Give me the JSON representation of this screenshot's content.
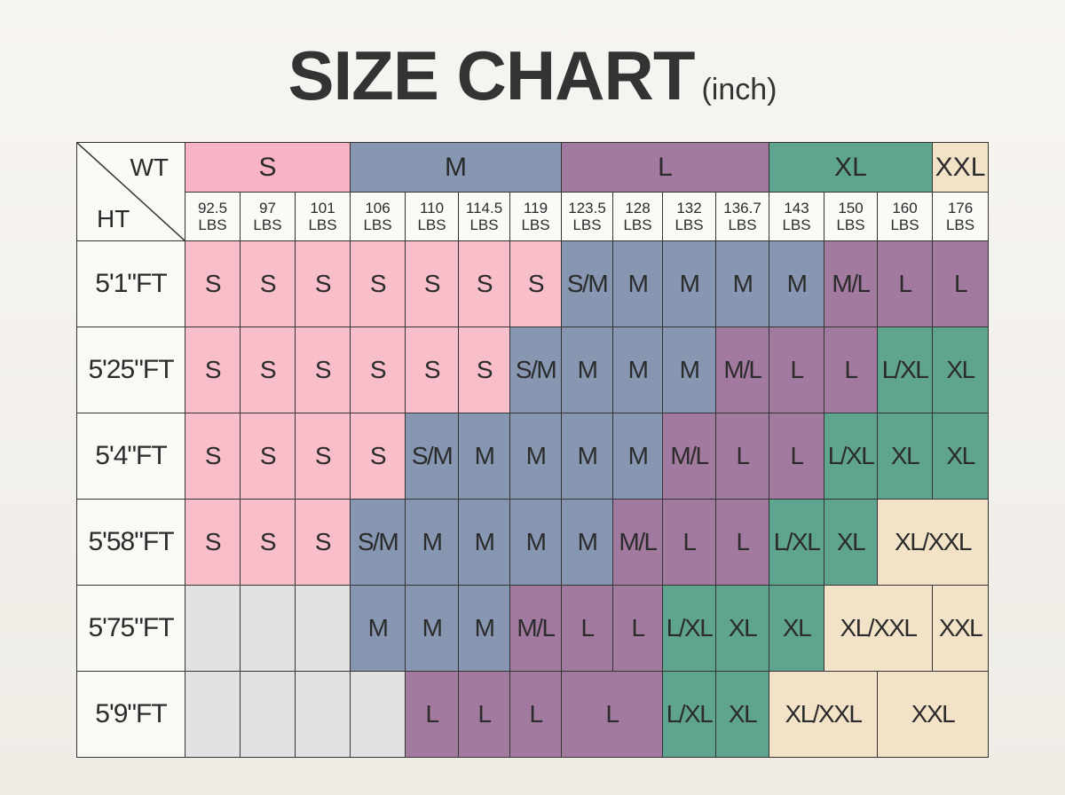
{
  "header": {
    "title": "SIZE CHART",
    "unit": "(inch)"
  },
  "table": {
    "corner": {
      "top": "WT",
      "bottom": "HT"
    },
    "groups": [
      {
        "text": "S",
        "span": 3,
        "color": "#f8b4c5"
      },
      {
        "text": "M",
        "span": 4,
        "color": "#8797b2"
      },
      {
        "text": "L",
        "span": 4,
        "color": "#a27a9f"
      },
      {
        "text": "XL",
        "span": 3,
        "color": "#5fa48e"
      },
      {
        "text": "XXL",
        "span": 1,
        "color": "#f2e2c8"
      }
    ],
    "weights": [
      "92.5\nLBS",
      "97\nLBS",
      "101\nLBS",
      "106\nLBS",
      "110\nLBS",
      "114.5\nLBS",
      "119\nLBS",
      "123.5\nLBS",
      "128\nLBS",
      "132\nLBS",
      "136.7\nLBS",
      "143\nLBS",
      "150\nLBS",
      "160\nLBS",
      "176\nLBS"
    ],
    "rows": [
      {
        "height": "5'1\"FT",
        "cells": [
          {
            "text": "S",
            "color": "#f8bfcb"
          },
          {
            "text": "S",
            "color": "#f8bfcb"
          },
          {
            "text": "S",
            "color": "#f8bfcb"
          },
          {
            "text": "S",
            "color": "#f8bfcb"
          },
          {
            "text": "S",
            "color": "#f8bfcb"
          },
          {
            "text": "S",
            "color": "#f8bfcb"
          },
          {
            "text": "S",
            "color": "#f8bfcb"
          },
          {
            "text": "S/M",
            "color": "#8797b2"
          },
          {
            "text": "M",
            "color": "#8797b2"
          },
          {
            "text": "M",
            "color": "#8797b2"
          },
          {
            "text": "M",
            "color": "#8797b2"
          },
          {
            "text": "M",
            "color": "#8797b2"
          },
          {
            "text": "M/L",
            "color": "#a27a9f"
          },
          {
            "text": "L",
            "color": "#a27a9f"
          },
          {
            "text": "L",
            "color": "#a27a9f"
          }
        ]
      },
      {
        "height": "5'25\"FT",
        "cells": [
          {
            "text": "S",
            "color": "#f8bfcb"
          },
          {
            "text": "S",
            "color": "#f8bfcb"
          },
          {
            "text": "S",
            "color": "#f8bfcb"
          },
          {
            "text": "S",
            "color": "#f8bfcb"
          },
          {
            "text": "S",
            "color": "#f8bfcb"
          },
          {
            "text": "S",
            "color": "#f8bfcb"
          },
          {
            "text": "S/M",
            "color": "#8797b2"
          },
          {
            "text": "M",
            "color": "#8797b2"
          },
          {
            "text": "M",
            "color": "#8797b2"
          },
          {
            "text": "M",
            "color": "#8797b2"
          },
          {
            "text": "M/L",
            "color": "#a27a9f"
          },
          {
            "text": "L",
            "color": "#a27a9f"
          },
          {
            "text": "L",
            "color": "#a27a9f"
          },
          {
            "text": "L/XL",
            "color": "#5fa48e"
          },
          {
            "text": "XL",
            "color": "#5fa48e"
          }
        ]
      },
      {
        "height": "5'4\"FT",
        "cells": [
          {
            "text": "S",
            "color": "#f8bfcb"
          },
          {
            "text": "S",
            "color": "#f8bfcb"
          },
          {
            "text": "S",
            "color": "#f8bfcb"
          },
          {
            "text": "S",
            "color": "#f8bfcb"
          },
          {
            "text": "S/M",
            "color": "#8797b2"
          },
          {
            "text": "M",
            "color": "#8797b2"
          },
          {
            "text": "M",
            "color": "#8797b2"
          },
          {
            "text": "M",
            "color": "#8797b2"
          },
          {
            "text": "M",
            "color": "#8797b2"
          },
          {
            "text": "M/L",
            "color": "#a27a9f"
          },
          {
            "text": "L",
            "color": "#a27a9f"
          },
          {
            "text": "L",
            "color": "#a27a9f"
          },
          {
            "text": "L/XL",
            "color": "#5fa48e"
          },
          {
            "text": "XL",
            "color": "#5fa48e"
          },
          {
            "text": "XL",
            "color": "#5fa48e"
          }
        ]
      },
      {
        "height": "5'58\"FT",
        "cells": [
          {
            "text": "S",
            "color": "#f8bfcb"
          },
          {
            "text": "S",
            "color": "#f8bfcb"
          },
          {
            "text": "S",
            "color": "#f8bfcb"
          },
          {
            "text": "S/M",
            "color": "#8797b2"
          },
          {
            "text": "M",
            "color": "#8797b2"
          },
          {
            "text": "M",
            "color": "#8797b2"
          },
          {
            "text": "M",
            "color": "#8797b2"
          },
          {
            "text": "M",
            "color": "#8797b2"
          },
          {
            "text": "M/L",
            "color": "#a27a9f"
          },
          {
            "text": "L",
            "color": "#a27a9f"
          },
          {
            "text": "L",
            "color": "#a27a9f"
          },
          {
            "text": "L/XL",
            "color": "#5fa48e"
          },
          {
            "text": "XL",
            "color": "#5fa48e"
          },
          {
            "text": "XL/XXL",
            "color": "#f2e2c8",
            "span": 2
          }
        ]
      },
      {
        "height": "5'75\"FT",
        "cells": [
          {
            "color": "#e1e1e1"
          },
          {
            "color": "#e1e1e1"
          },
          {
            "color": "#e1e1e1"
          },
          {
            "text": "M",
            "color": "#8797b2"
          },
          {
            "text": "M",
            "color": "#8797b2"
          },
          {
            "text": "M",
            "color": "#8797b2"
          },
          {
            "text": "M/L",
            "color": "#a27a9f"
          },
          {
            "text": "L",
            "color": "#a27a9f"
          },
          {
            "text": "L",
            "color": "#a27a9f"
          },
          {
            "text": "L/XL",
            "color": "#5fa48e"
          },
          {
            "text": "XL",
            "color": "#5fa48e"
          },
          {
            "text": "XL",
            "color": "#5fa48e"
          },
          {
            "text": "XL/XXL",
            "color": "#f2e2c8",
            "span": 2
          },
          {
            "text": "XXL",
            "color": "#f2e2c8"
          }
        ]
      },
      {
        "height": "5'9\"FT",
        "cells": [
          {
            "color": "#e1e1e1"
          },
          {
            "color": "#e1e1e1"
          },
          {
            "color": "#e1e1e1"
          },
          {
            "color": "#e1e1e1"
          },
          {
            "text": "L",
            "color": "#a27a9f"
          },
          {
            "text": "L",
            "color": "#a27a9f"
          },
          {
            "text": "L",
            "color": "#a27a9f"
          },
          {
            "text": "L",
            "color": "#a27a9f",
            "span": 2
          },
          {
            "text": "L/XL",
            "color": "#5fa48e"
          },
          {
            "text": "XL",
            "color": "#5fa48e"
          },
          {
            "text": "XL/XXL",
            "color": "#f2e2c8",
            "span": 2
          },
          {
            "text": "XXL",
            "color": "#f2e2c8",
            "span": 2
          }
        ]
      }
    ]
  }
}
